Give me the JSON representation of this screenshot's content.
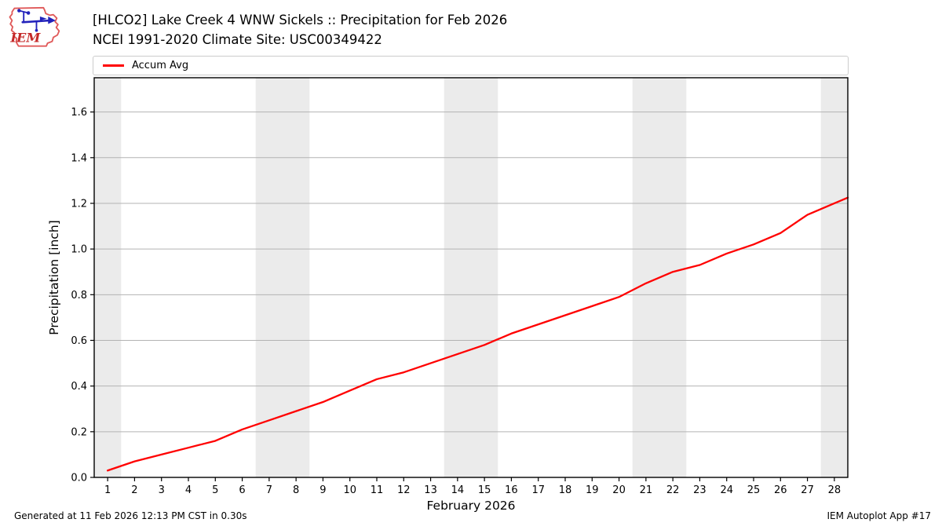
{
  "header": {
    "title_line1": "[HLCO2] Lake Creek 4 WNW Sickels :: Precipitation for Feb 2026",
    "title_line2": "NCEI 1991-2020 Climate Site: USC00349422",
    "logo_text": "IEM"
  },
  "legend": {
    "items": [
      {
        "label": "Accum Avg",
        "color": "#ff0000"
      }
    ]
  },
  "footer": {
    "left": "Generated at 11 Feb 2026 12:13 PM CST in 0.30s",
    "right": "IEM Autoplot App #17"
  },
  "chart_data": {
    "type": "line",
    "title": "[HLCO2] Lake Creek 4 WNW Sickels :: Precipitation for Feb 2026",
    "subtitle": "NCEI 1991-2020 Climate Site: USC00349422",
    "xlabel": "February 2026",
    "ylabel": "Precipitation [inch]",
    "xlim": [
      0.5,
      28.5
    ],
    "ylim": [
      0,
      1.75
    ],
    "x_ticks": [
      1,
      2,
      3,
      4,
      5,
      6,
      7,
      8,
      9,
      10,
      11,
      12,
      13,
      14,
      15,
      16,
      17,
      18,
      19,
      20,
      21,
      22,
      23,
      24,
      25,
      26,
      27,
      28
    ],
    "y_ticks": [
      0.0,
      0.2,
      0.4,
      0.6,
      0.8,
      1.0,
      1.2,
      1.4,
      1.6
    ],
    "grid": "horizontal",
    "legend_position": "top",
    "weekend_bands": [
      [
        0.5,
        1.5
      ],
      [
        6.5,
        8.5
      ],
      [
        13.5,
        15.5
      ],
      [
        20.5,
        22.5
      ],
      [
        27.5,
        28.5
      ]
    ],
    "series": [
      {
        "name": "Accum Avg",
        "color": "#ff0000",
        "x": [
          1,
          2,
          3,
          4,
          5,
          6,
          7,
          8,
          9,
          10,
          11,
          12,
          13,
          14,
          15,
          16,
          17,
          18,
          19,
          20,
          21,
          22,
          23,
          24,
          25,
          26,
          27,
          28
        ],
        "values": [
          0.03,
          0.07,
          0.1,
          0.13,
          0.16,
          0.21,
          0.25,
          0.29,
          0.33,
          0.38,
          0.43,
          0.46,
          0.5,
          0.54,
          0.58,
          0.63,
          0.67,
          0.71,
          0.75,
          0.79,
          0.85,
          0.9,
          0.93,
          0.98,
          1.02,
          1.07,
          1.15,
          1.2
        ],
        "extend_to_right": true
      }
    ],
    "colors": {
      "band": "#ebebeb",
      "grid": "#b3b3b3",
      "frame": "#000000",
      "line": "#ff0000"
    }
  },
  "logo_colors": {
    "outline": "#e05a5a",
    "instrument": "#2222bb",
    "letters": "#c42828"
  }
}
